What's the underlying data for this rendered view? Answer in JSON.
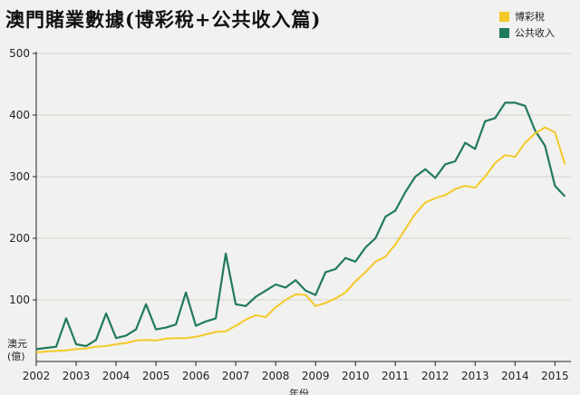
{
  "chart_data": {
    "type": "line",
    "title": "澳門賭業數據(博彩稅+公共收入篇)",
    "y_unit_line1": "澳元",
    "y_unit_line2": "(億)",
    "xlabel": "年份",
    "ylim": [
      0,
      500
    ],
    "xlim": [
      2002,
      2015.4
    ],
    "y_ticks": [
      100,
      200,
      300,
      400,
      500
    ],
    "x_ticks": [
      "2002",
      "2003",
      "2004",
      "2005",
      "2006",
      "2007",
      "2008",
      "2009",
      "2010",
      "2011",
      "2012",
      "2013",
      "2014",
      "2015"
    ],
    "grid": true,
    "legend_position": "top-right",
    "x": [
      2002.0,
      2002.25,
      2002.5,
      2002.75,
      2003.0,
      2003.25,
      2003.5,
      2003.75,
      2004.0,
      2004.25,
      2004.5,
      2004.75,
      2005.0,
      2005.25,
      2005.5,
      2005.75,
      2006.0,
      2006.25,
      2006.5,
      2006.75,
      2007.0,
      2007.25,
      2007.5,
      2007.75,
      2008.0,
      2008.25,
      2008.5,
      2008.75,
      2009.0,
      2009.25,
      2009.5,
      2009.75,
      2010.0,
      2010.25,
      2010.5,
      2010.75,
      2011.0,
      2011.25,
      2011.5,
      2011.75,
      2012.0,
      2012.25,
      2012.5,
      2012.75,
      2013.0,
      2013.25,
      2013.5,
      2013.75,
      2014.0,
      2014.25,
      2014.5,
      2014.75,
      2015.0,
      2015.25
    ],
    "series": [
      {
        "name": "博彩稅",
        "color": "#f4c927",
        "values": [
          15,
          16,
          17,
          18,
          20,
          21,
          24,
          25,
          28,
          30,
          34,
          35,
          34,
          37,
          38,
          38,
          40,
          44,
          48,
          49,
          58,
          68,
          75,
          72,
          88,
          100,
          109,
          108,
          90,
          95,
          102,
          112,
          130,
          145,
          162,
          170,
          190,
          215,
          240,
          258,
          265,
          270,
          280,
          285,
          282,
          300,
          322,
          335,
          332,
          355,
          370,
          380,
          372,
          320
        ],
        "values_tail_note": ""
      },
      {
        "name": "公共收入",
        "color": "#217a5c",
        "values": [
          20,
          22,
          24,
          70,
          28,
          25,
          35,
          78,
          38,
          42,
          52,
          93,
          52,
          55,
          60,
          112,
          58,
          65,
          70,
          175,
          93,
          90,
          105,
          115,
          125,
          120,
          132,
          115,
          108,
          145,
          150,
          168,
          162,
          185,
          200,
          235,
          245,
          275,
          300,
          312,
          298,
          320,
          325,
          355,
          345,
          390,
          395,
          420,
          420,
          415,
          375,
          350,
          285,
          268
        ],
        "values_tail_note": ""
      }
    ]
  }
}
